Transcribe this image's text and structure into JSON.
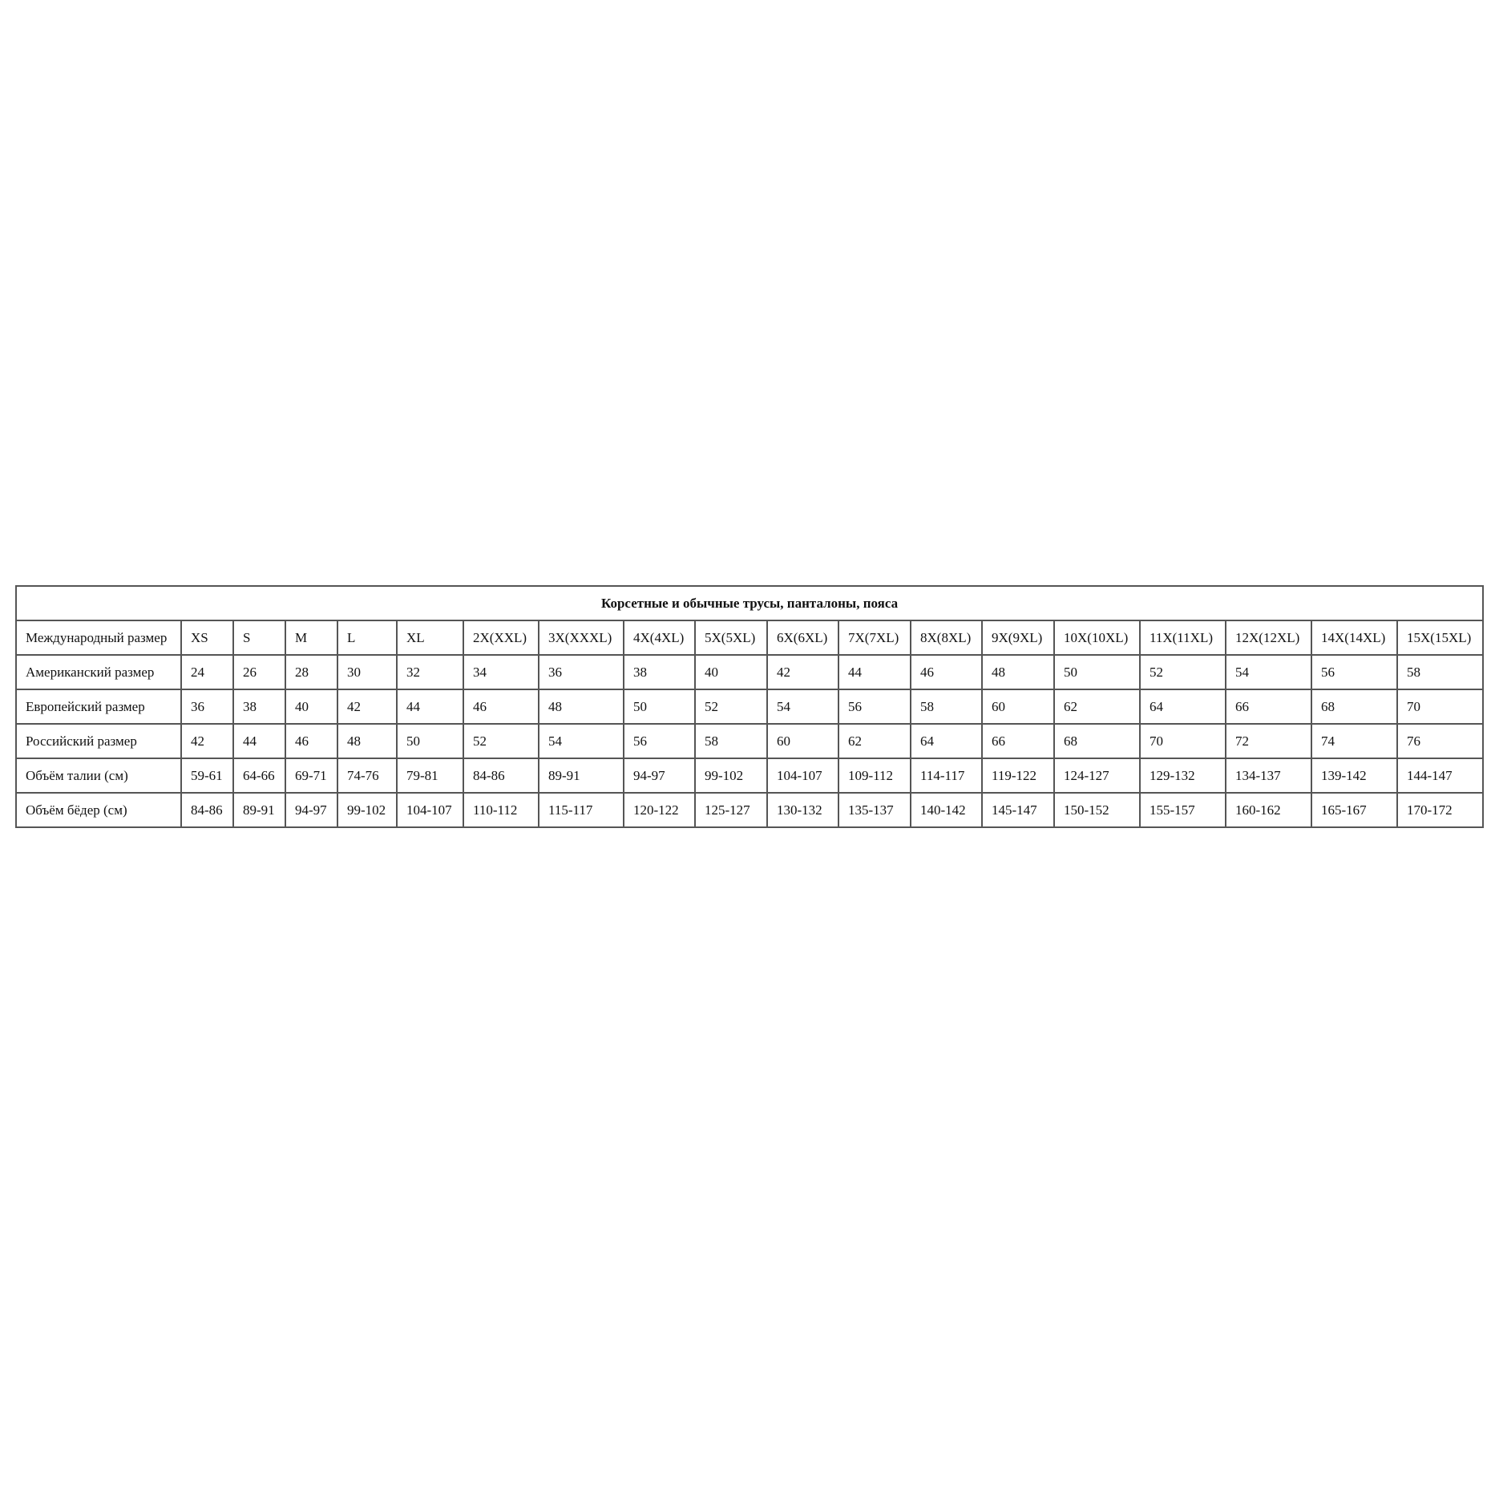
{
  "table": {
    "title": "Корсетные и обычные трусы, панталоны, пояса",
    "rows": [
      [
        "Международный размер",
        "XS",
        "S",
        "M",
        "L",
        "XL",
        "2X(XXL)",
        "3X(XXXL)",
        "4X(4XL)",
        "5X(5XL)",
        "6X(6XL)",
        "7X(7XL)",
        "8X(8XL)",
        "9X(9XL)",
        "10X(10XL)",
        "11X(11XL)",
        "12X(12XL)",
        "14X(14XL)",
        "15X(15XL)"
      ],
      [
        "Американский размер",
        "24",
        "26",
        "28",
        "30",
        "32",
        "34",
        "36",
        "38",
        "40",
        "42",
        "44",
        "46",
        "48",
        "50",
        "52",
        "54",
        "56",
        "58"
      ],
      [
        "Европейский размер",
        "36",
        "38",
        "40",
        "42",
        "44",
        "46",
        "48",
        "50",
        "52",
        "54",
        "56",
        "58",
        "60",
        "62",
        "64",
        "66",
        "68",
        "70"
      ],
      [
        "Российский размер",
        "42",
        "44",
        "46",
        "48",
        "50",
        "52",
        "54",
        "56",
        "58",
        "60",
        "62",
        "64",
        "66",
        "68",
        "70",
        "72",
        "74",
        "76"
      ],
      [
        "Объём талии (см)",
        "59-61",
        "64-66",
        "69-71",
        "74-76",
        "79-81",
        "84-86",
        "89-91",
        "94-97",
        "99-102",
        "104-107",
        "109-112",
        "114-117",
        "119-122",
        "124-127",
        "129-132",
        "134-137",
        "139-142",
        "144-147"
      ],
      [
        "Объём бёдер (см)",
        "84-86",
        "89-91",
        "94-97",
        "99-102",
        "104-107",
        "110-112",
        "115-117",
        "120-122",
        "125-127",
        "130-132",
        "135-137",
        "140-142",
        "145-147",
        "150-152",
        "155-157",
        "160-162",
        "165-167",
        "170-172"
      ]
    ]
  }
}
